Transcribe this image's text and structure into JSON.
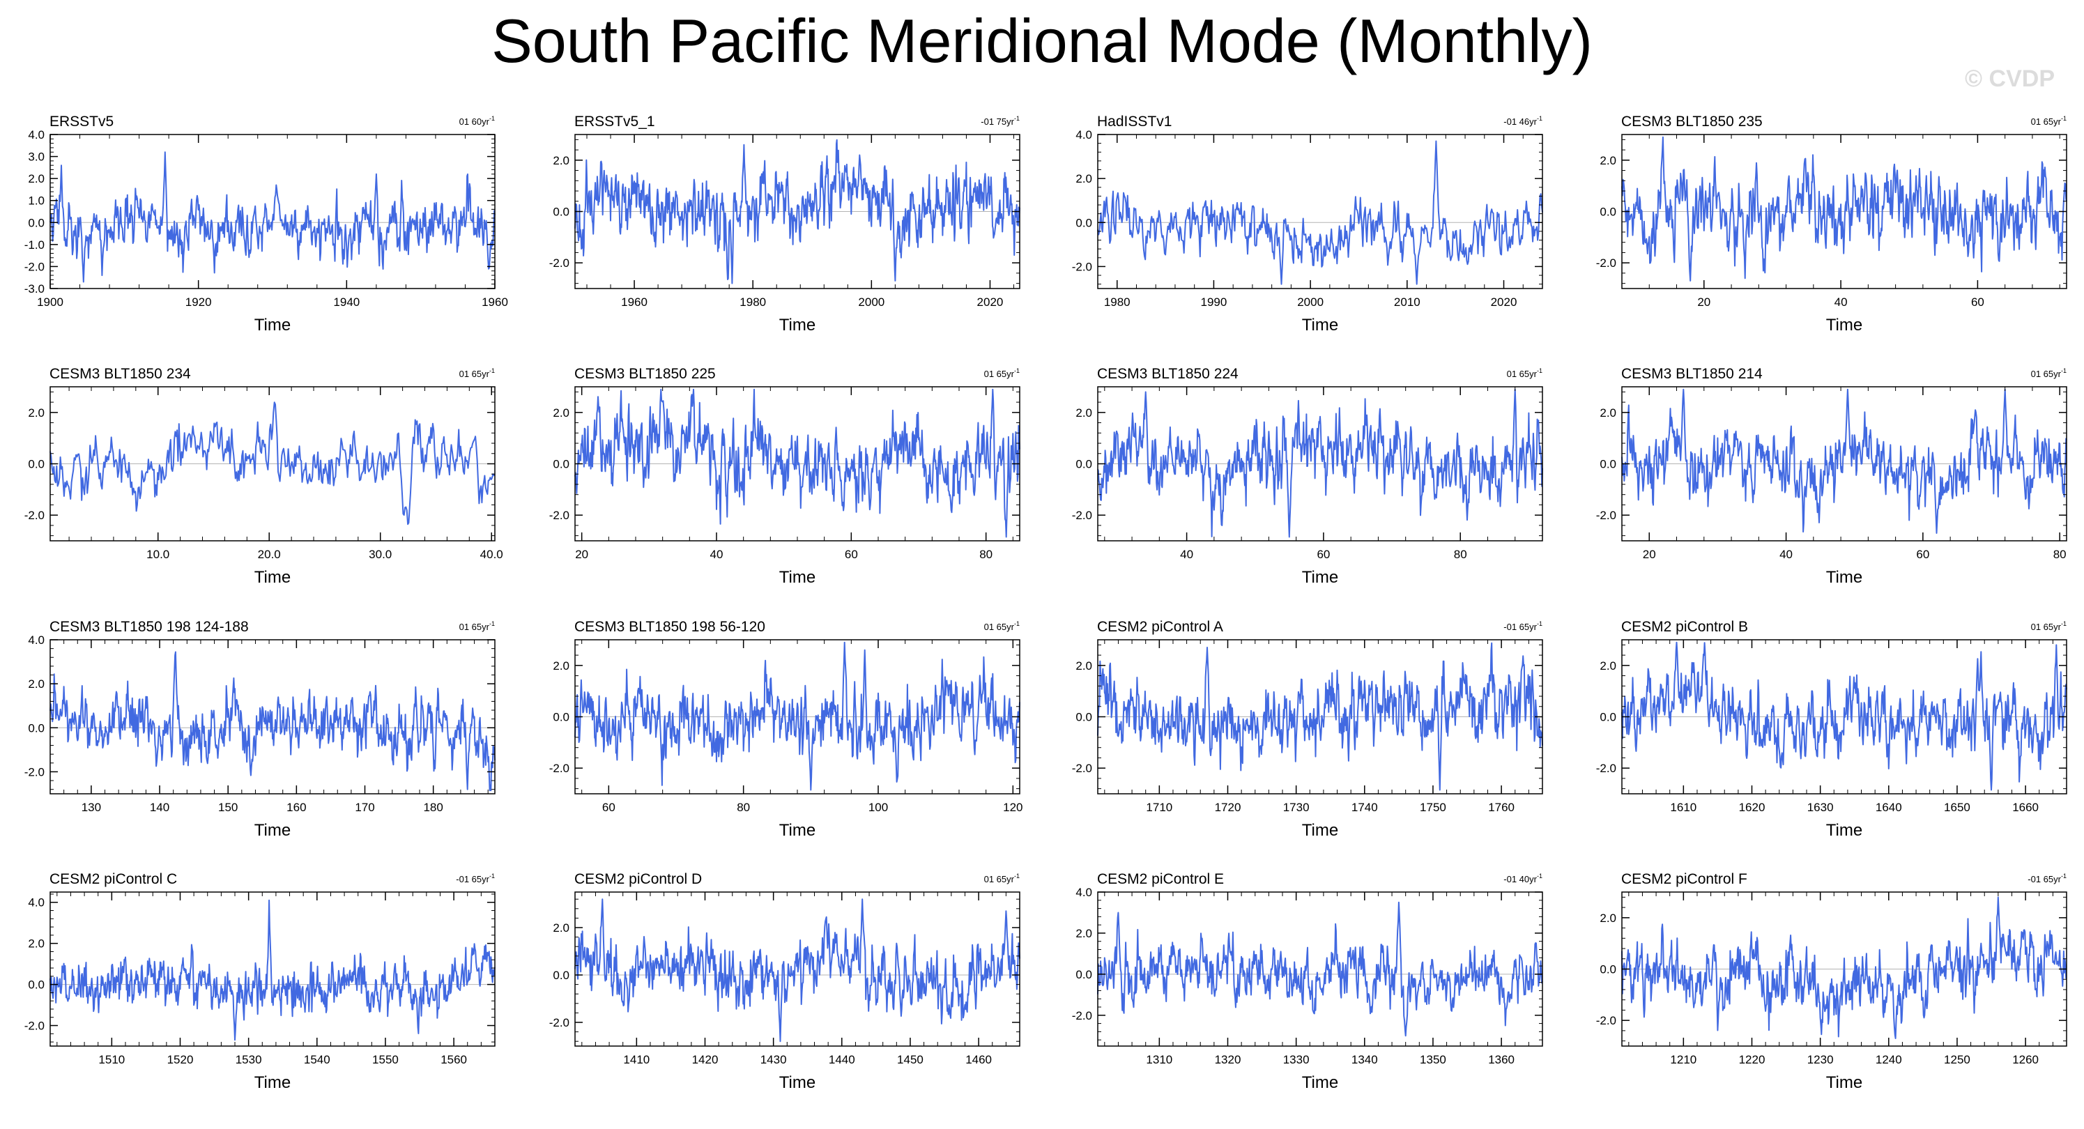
{
  "title": "South Pacific Meridional Mode (Monthly)",
  "watermark": "© CVDP",
  "colors": {
    "line": "#4169e1",
    "zero_line": "#b4b4b4",
    "axis": "#000000"
  },
  "chart_data": [
    {
      "type": "line",
      "title": "ERSSTv5",
      "trend_value": "01 60",
      "trend_unit": "yr",
      "trend_exp": "-1",
      "xlabel": "Time",
      "xlim": [
        1900,
        1960
      ],
      "ylim": [
        -3.0,
        4.0
      ],
      "xticks": [
        1900,
        1920,
        1940,
        1960
      ],
      "xtick_labels": [
        "1900",
        "1920",
        "1940",
        "1960"
      ],
      "yticks": [
        -3,
        -2,
        -1,
        0,
        1,
        2,
        3,
        4
      ],
      "ytick_labels": [
        "-3.0",
        "-2.0",
        "-1.0",
        "0.0",
        "1.0",
        "2.0",
        "3.0",
        "4.0"
      ],
      "noise_amp": 0.85,
      "seed": 11,
      "peaks": [
        [
          1901.5,
          2.6
        ],
        [
          1915.5,
          3.2
        ],
        [
          1944,
          2.2
        ],
        [
          1959.2,
          -2.3
        ],
        [
          1904.5,
          -2.7
        ],
        [
          1907,
          -2.4
        ]
      ]
    },
    {
      "type": "line",
      "title": "ERSSTv5_1",
      "trend_value": "-01 75",
      "trend_unit": "yr",
      "trend_exp": "-1",
      "xlabel": "Time",
      "xlim": [
        1950,
        2025
      ],
      "ylim": [
        -3.0,
        3.0
      ],
      "xticks": [
        1960,
        1980,
        2000,
        2020
      ],
      "xtick_labels": [
        "1960",
        "1980",
        "2000",
        "2020"
      ],
      "yticks": [
        -2,
        0,
        2
      ],
      "ytick_labels": [
        "-2.0",
        "0.0",
        "2.0"
      ],
      "noise_amp": 0.9,
      "seed": 23,
      "peaks": [
        [
          1978.5,
          2.6
        ],
        [
          1976.5,
          -2.8
        ],
        [
          1998,
          2.2
        ],
        [
          2004,
          -2.7
        ]
      ]
    },
    {
      "type": "line",
      "title": "HadISSTv1",
      "trend_value": "-01 46",
      "trend_unit": "yr",
      "trend_exp": "-1",
      "xlabel": "Time",
      "xlim": [
        1978,
        2024
      ],
      "ylim": [
        -3.0,
        4.0
      ],
      "xticks": [
        1980,
        1990,
        2000,
        2010,
        2020
      ],
      "xtick_labels": [
        "1980",
        "1990",
        "2000",
        "2010",
        "2020"
      ],
      "yticks": [
        -2,
        0,
        2,
        4
      ],
      "ytick_labels": [
        "-2.0",
        "0.0",
        "2.0",
        "4.0"
      ],
      "noise_amp": 0.85,
      "seed": 37,
      "peaks": [
        [
          2013,
          3.7
        ],
        [
          1997,
          -2.8
        ],
        [
          2011,
          -2.8
        ],
        [
          2023.8,
          1.5
        ]
      ]
    },
    {
      "type": "line",
      "title": "CESM3 BLT1850 235",
      "trend_value": "01 65",
      "trend_unit": "yr",
      "trend_exp": "-1",
      "xlabel": "Time",
      "xlim": [
        8,
        73
      ],
      "ylim": [
        -3.0,
        3.0
      ],
      "xticks": [
        20,
        40,
        60
      ],
      "xtick_labels": [
        "20",
        "40",
        "60"
      ],
      "yticks": [
        -2,
        0,
        2
      ],
      "ytick_labels": [
        "-2.0",
        "0.0",
        "2.0"
      ],
      "noise_amp": 1.05,
      "seed": 41,
      "peaks": [
        [
          14,
          3.0
        ],
        [
          18,
          -2.7
        ],
        [
          26,
          -2.6
        ]
      ]
    },
    {
      "type": "line",
      "title": "CESM3 BLT1850 234",
      "trend_value": "01 65",
      "trend_unit": "yr",
      "trend_exp": "-1",
      "xlabel": "Time",
      "xlim": [
        0.3,
        40.3
      ],
      "ylim": [
        -3.0,
        3.0
      ],
      "xticks": [
        10,
        20,
        30,
        40
      ],
      "xtick_labels": [
        "10.0",
        "20.0",
        "30.0",
        "40.0"
      ],
      "yticks": [
        -2,
        0,
        2
      ],
      "ytick_labels": [
        "-2.0",
        "0.0",
        "2.0"
      ],
      "noise_amp": 0.8,
      "seed": 53,
      "peaks": [
        [
          20.5,
          2.6
        ],
        [
          32.5,
          -2.6
        ],
        [
          32.1,
          -2.3
        ]
      ]
    },
    {
      "type": "line",
      "title": "CESM3 BLT1850 225",
      "trend_value": "01 65",
      "trend_unit": "yr",
      "trend_exp": "-1",
      "xlabel": "Time",
      "xlim": [
        19,
        85
      ],
      "ylim": [
        -3.0,
        3.0
      ],
      "xticks": [
        20,
        40,
        60,
        80
      ],
      "xtick_labels": [
        "20",
        "40",
        "60",
        "80"
      ],
      "yticks": [
        -2,
        0,
        2
      ],
      "ytick_labels": [
        "-2.0",
        "0.0",
        "2.0"
      ],
      "noise_amp": 1.0,
      "seed": 67,
      "peaks": [
        [
          81,
          3.0
        ],
        [
          83,
          -2.9
        ]
      ]
    },
    {
      "type": "line",
      "title": "CESM3 BLT1850 224",
      "trend_value": "01 65",
      "trend_unit": "yr",
      "trend_exp": "-1",
      "xlabel": "Time",
      "xlim": [
        27,
        92
      ],
      "ylim": [
        -3.0,
        3.0
      ],
      "xticks": [
        40,
        60,
        80
      ],
      "xtick_labels": [
        "40",
        "60",
        "80"
      ],
      "yticks": [
        -2,
        0,
        2
      ],
      "ytick_labels": [
        "-2.0",
        "0.0",
        "2.0"
      ],
      "noise_amp": 0.95,
      "seed": 71,
      "peaks": [
        [
          88,
          3.1
        ],
        [
          55,
          -3.0
        ],
        [
          34,
          2.8
        ]
      ]
    },
    {
      "type": "line",
      "title": "CESM3 BLT1850 214",
      "trend_value": "01 65",
      "trend_unit": "yr",
      "trend_exp": "-1",
      "xlabel": "Time",
      "xlim": [
        16,
        81
      ],
      "ylim": [
        -3.0,
        3.0
      ],
      "xticks": [
        20,
        40,
        60,
        80
      ],
      "xtick_labels": [
        "20",
        "40",
        "60",
        "80"
      ],
      "yticks": [
        -2,
        0,
        2
      ],
      "ytick_labels": [
        "-2.0",
        "0.0",
        "2.0"
      ],
      "noise_amp": 0.9,
      "seed": 83,
      "peaks": [
        [
          25,
          3.1
        ],
        [
          49,
          3.0
        ],
        [
          62,
          -2.7
        ],
        [
          72,
          2.9
        ]
      ]
    },
    {
      "type": "line",
      "title": "CESM3 BLT1850 198 124-188",
      "trend_value": "01 65",
      "trend_unit": "yr",
      "trend_exp": "-1",
      "xlabel": "Time",
      "xlim": [
        124,
        189
      ],
      "ylim": [
        -3.0,
        4.0
      ],
      "xticks": [
        130,
        140,
        150,
        160,
        170,
        180
      ],
      "xtick_labels": [
        "130",
        "140",
        "150",
        "160",
        "170",
        "180"
      ],
      "yticks": [
        -2,
        0,
        2,
        4
      ],
      "ytick_labels": [
        "-2.0",
        "0.0",
        "2.0",
        "4.0"
      ],
      "noise_amp": 1.0,
      "seed": 97,
      "peaks": [
        [
          142.3,
          3.8
        ],
        [
          185,
          -2.8
        ]
      ]
    },
    {
      "type": "line",
      "title": "CESM3 BLT1850 198 56-120",
      "trend_value": "01 65",
      "trend_unit": "yr",
      "trend_exp": "-1",
      "xlabel": "Time",
      "xlim": [
        55,
        121
      ],
      "ylim": [
        -3.0,
        3.0
      ],
      "xticks": [
        60,
        80,
        100,
        120
      ],
      "xtick_labels": [
        "60",
        "80",
        "100",
        "120"
      ],
      "yticks": [
        -2,
        0,
        2
      ],
      "ytick_labels": [
        "-2.0",
        "0.0",
        "2.0"
      ],
      "noise_amp": 0.95,
      "seed": 101,
      "peaks": [
        [
          95,
          3.2
        ],
        [
          98,
          2.6
        ],
        [
          90,
          -2.9
        ]
      ]
    },
    {
      "type": "line",
      "title": "CESM2 piControl A",
      "trend_value": "-01 65",
      "trend_unit": "yr",
      "trend_exp": "-1",
      "xlabel": "Time",
      "xlim": [
        1701,
        1766
      ],
      "ylim": [
        -3.0,
        3.0
      ],
      "xticks": [
        1710,
        1720,
        1730,
        1740,
        1750,
        1760
      ],
      "xtick_labels": [
        "1710",
        "1720",
        "1730",
        "1740",
        "1750",
        "1760"
      ],
      "yticks": [
        -2,
        0,
        2
      ],
      "ytick_labels": [
        "-2.0",
        "0.0",
        "2.0"
      ],
      "noise_amp": 1.0,
      "seed": 113,
      "peaks": [
        [
          1717,
          2.7
        ],
        [
          1751,
          -2.9
        ]
      ]
    },
    {
      "type": "line",
      "title": "CESM2 piControl B",
      "trend_value": "01 65",
      "trend_unit": "yr",
      "trend_exp": "-1",
      "xlabel": "Time",
      "xlim": [
        1601,
        1666
      ],
      "ylim": [
        -3.0,
        3.0
      ],
      "xticks": [
        1610,
        1620,
        1630,
        1640,
        1650,
        1660
      ],
      "xtick_labels": [
        "1610",
        "1620",
        "1630",
        "1640",
        "1650",
        "1660"
      ],
      "yticks": [
        -2,
        0,
        2
      ],
      "ytick_labels": [
        "-2.0",
        "0.0",
        "2.0"
      ],
      "noise_amp": 0.9,
      "seed": 127,
      "peaks": [
        [
          1609,
          3.3
        ],
        [
          1655,
          -3.1
        ],
        [
          1664.5,
          2.8
        ]
      ]
    },
    {
      "type": "line",
      "title": "CESM2 piControl C",
      "trend_value": "-01 65",
      "trend_unit": "yr",
      "trend_exp": "-1",
      "xlabel": "Time",
      "xlim": [
        1501,
        1566
      ],
      "ylim": [
        -3.0,
        4.5
      ],
      "xticks": [
        1510,
        1520,
        1530,
        1540,
        1550,
        1560
      ],
      "xtick_labels": [
        "1510",
        "1520",
        "1530",
        "1540",
        "1550",
        "1560"
      ],
      "yticks": [
        -2,
        0,
        2,
        4
      ],
      "ytick_labels": [
        "-2.0",
        "0.0",
        "2.0",
        "4.0"
      ],
      "noise_amp": 0.9,
      "seed": 131,
      "peaks": [
        [
          1533,
          4.1
        ],
        [
          1528,
          -2.7
        ]
      ]
    },
    {
      "type": "line",
      "title": "CESM2 piControl D",
      "trend_value": "01 65",
      "trend_unit": "yr",
      "trend_exp": "-1",
      "xlabel": "Time",
      "xlim": [
        1401,
        1466
      ],
      "ylim": [
        -3.0,
        3.5
      ],
      "xticks": [
        1410,
        1420,
        1430,
        1440,
        1450,
        1460
      ],
      "xtick_labels": [
        "1410",
        "1420",
        "1430",
        "1440",
        "1450",
        "1460"
      ],
      "yticks": [
        -2,
        0,
        2
      ],
      "ytick_labels": [
        "-2.0",
        "0.0",
        "2.0"
      ],
      "noise_amp": 0.95,
      "seed": 149,
      "peaks": [
        [
          1405,
          3.2
        ],
        [
          1443,
          3.2
        ],
        [
          1464,
          2.7
        ],
        [
          1431,
          -2.8
        ]
      ]
    },
    {
      "type": "line",
      "title": "CESM2 piControl E",
      "trend_value": "-01 40",
      "trend_unit": "yr",
      "trend_exp": "-1",
      "xlabel": "Time",
      "xlim": [
        1301,
        1366
      ],
      "ylim": [
        -3.5,
        4.0
      ],
      "xticks": [
        1310,
        1320,
        1330,
        1340,
        1350,
        1360
      ],
      "xtick_labels": [
        "1310",
        "1320",
        "1330",
        "1340",
        "1350",
        "1360"
      ],
      "yticks": [
        -2,
        0,
        2,
        4
      ],
      "ytick_labels": [
        "-2.0",
        "0.0",
        "2.0",
        "4.0"
      ],
      "noise_amp": 0.95,
      "seed": 157,
      "peaks": [
        [
          1345,
          3.5
        ],
        [
          1346,
          -3.0
        ],
        [
          1304,
          3.0
        ]
      ]
    },
    {
      "type": "line",
      "title": "CESM2 piControl F",
      "trend_value": "-01 65",
      "trend_unit": "yr",
      "trend_exp": "-1",
      "xlabel": "Time",
      "xlim": [
        1201,
        1266
      ],
      "ylim": [
        -3.0,
        3.0
      ],
      "xticks": [
        1210,
        1220,
        1230,
        1240,
        1250,
        1260
      ],
      "xtick_labels": [
        "1210",
        "1220",
        "1230",
        "1240",
        "1250",
        "1260"
      ],
      "yticks": [
        -2,
        0,
        2
      ],
      "ytick_labels": [
        "-2.0",
        "0.0",
        "2.0"
      ],
      "noise_amp": 0.95,
      "seed": 163,
      "peaks": [
        [
          1256,
          2.8
        ],
        [
          1241,
          -2.7
        ]
      ]
    }
  ]
}
